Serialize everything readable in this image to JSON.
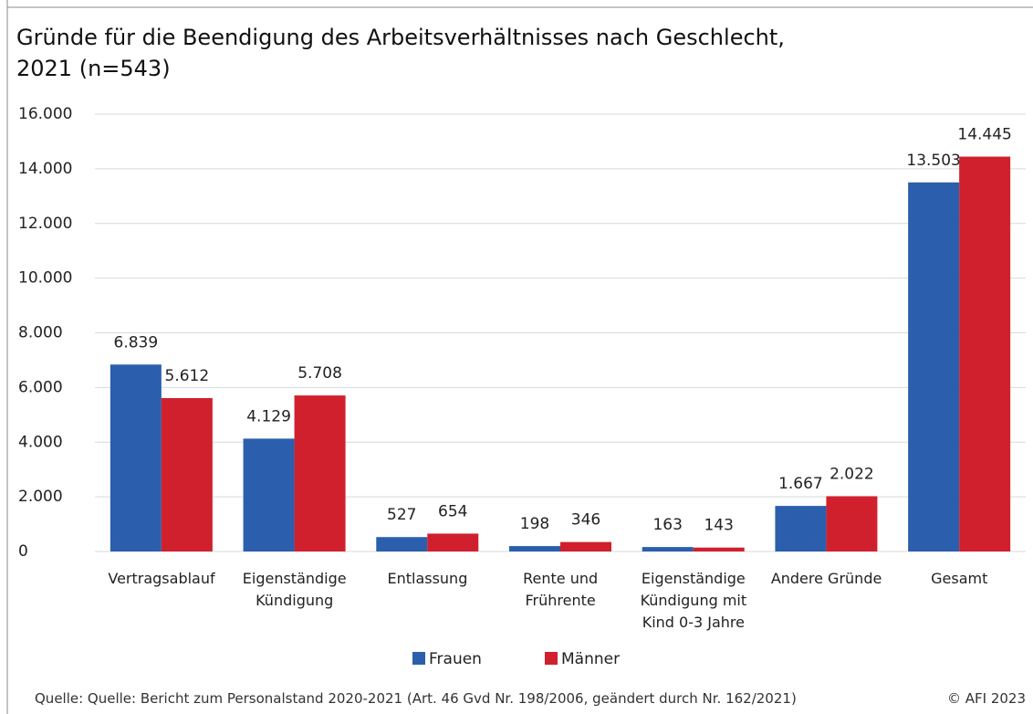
{
  "chart_data": {
    "type": "bar",
    "title": "Gründe für die Beendigung des Arbeitsverhältnisses nach Geschlecht,\n2021 (n=543)",
    "categories": [
      "Vertragsablauf",
      "Eigenständige\nKündigung",
      "Entlassung",
      "Rente und\nFrührente",
      "Eigenständige\nKündigung mit\nKind 0-3 Jahre",
      "Andere Gründe",
      "Gesamt"
    ],
    "series": [
      {
        "name": "Frauen",
        "color": "#2b5fad",
        "values": [
          6839,
          4129,
          527,
          198,
          163,
          1667,
          13503
        ],
        "value_labels": [
          "6.839",
          "4.129",
          "527",
          "198",
          "163",
          "1.667",
          "13.503"
        ]
      },
      {
        "name": "Männer",
        "color": "#d0202e",
        "values": [
          5612,
          5708,
          654,
          346,
          143,
          2022,
          14445
        ],
        "value_labels": [
          "5.612",
          "5.708",
          "654",
          "346",
          "143",
          "2.022",
          "14.445"
        ]
      }
    ],
    "ylim": [
      0,
      16000
    ],
    "yticks": [
      0,
      {
        "value": 2000,
        "label": "2.000"
      },
      {
        "value": 4000,
        "label": "4.000"
      },
      {
        "value": 6000,
        "label": "6.000"
      },
      {
        "value": 8000,
        "label": "8.000"
      },
      {
        "value": 10000,
        "label": "10.000"
      },
      {
        "value": 12000,
        "label": "12.000"
      },
      {
        "value": 14000,
        "label": "14.000"
      },
      {
        "value": 16000,
        "label": "16.000"
      }
    ],
    "grid": true,
    "legend": "bottom",
    "source": "Quelle: Quelle: Bericht zum Personalstand 2020-2021 (Art. 46 Gvd Nr. 198/2006, geändert durch Nr. 162/2021)",
    "copyright": "© AFI 2023"
  }
}
